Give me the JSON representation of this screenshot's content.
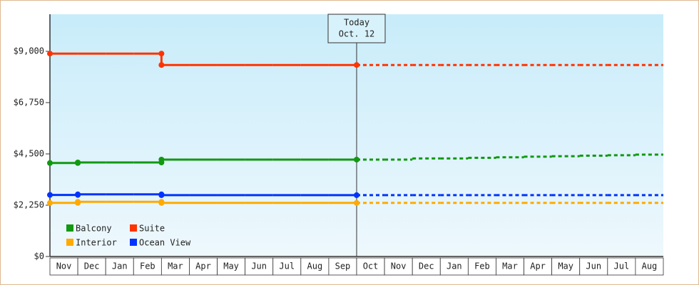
{
  "chart_data": {
    "type": "step",
    "categories": [
      "Nov",
      "Dec",
      "Jan",
      "Feb",
      "Mar",
      "Apr",
      "May",
      "Jun",
      "Jul",
      "Aug",
      "Sep",
      "Oct",
      "Nov",
      "Dec",
      "Jan",
      "Feb",
      "Mar",
      "Apr",
      "May",
      "Jun",
      "Jul",
      "Aug"
    ],
    "ylim": [
      0,
      10625
    ],
    "yticks": [
      {
        "value": 0,
        "label": "$0"
      },
      {
        "value": 2250,
        "label": "$2,250"
      },
      {
        "value": 4500,
        "label": "$4,500"
      },
      {
        "value": 6750,
        "label": "$6,750"
      },
      {
        "value": 9000,
        "label": "$9,000"
      }
    ],
    "annotation": {
      "label": "Today",
      "date": "Oct. 12",
      "category": 11
    },
    "series": [
      {
        "name": "Balcony",
        "color": "#119911",
        "values": [
          4100,
          4125,
          4125,
          4125,
          4250,
          4250,
          4250,
          4250,
          4250,
          4250,
          4250,
          4250,
          null,
          null,
          null,
          null,
          null,
          null,
          null,
          null,
          null,
          null
        ],
        "forecast": [
          null,
          null,
          null,
          null,
          null,
          null,
          null,
          null,
          null,
          null,
          null,
          null,
          4250,
          4300,
          4300,
          4330,
          4350,
          4380,
          4400,
          4420,
          4440,
          4470
        ]
      },
      {
        "name": "Suite",
        "color": "#ff3300",
        "values": [
          8900,
          8900,
          8900,
          8900,
          8400,
          8400,
          8400,
          8400,
          8400,
          8400,
          8400,
          8400,
          null,
          null,
          null,
          null,
          null,
          null,
          null,
          null,
          null,
          null
        ],
        "forecast": [
          null,
          null,
          null,
          null,
          null,
          null,
          null,
          null,
          null,
          null,
          null,
          null,
          8400,
          8400,
          8400,
          8400,
          8400,
          8400,
          8400,
          8400,
          8400,
          8400
        ]
      },
      {
        "name": "Interior",
        "color": "#ffaa00",
        "values": [
          2350,
          2400,
          2400,
          2400,
          2350,
          2350,
          2350,
          2350,
          2350,
          2350,
          2350,
          2350,
          null,
          null,
          null,
          null,
          null,
          null,
          null,
          null,
          null,
          null
        ],
        "forecast": [
          null,
          null,
          null,
          null,
          null,
          null,
          null,
          null,
          null,
          null,
          null,
          null,
          2350,
          2350,
          2350,
          2350,
          2350,
          2350,
          2350,
          2350,
          2350,
          2350
        ]
      },
      {
        "name": "Ocean View",
        "color": "#0033ff",
        "values": [
          2700,
          2725,
          2725,
          2725,
          2690,
          2690,
          2690,
          2690,
          2690,
          2690,
          2690,
          2690,
          null,
          null,
          null,
          null,
          null,
          null,
          null,
          null,
          null,
          null
        ],
        "forecast": [
          null,
          null,
          null,
          null,
          null,
          null,
          null,
          null,
          null,
          null,
          null,
          null,
          2690,
          2690,
          2690,
          2690,
          2690,
          2690,
          2690,
          2690,
          2690,
          2690
        ]
      }
    ]
  }
}
